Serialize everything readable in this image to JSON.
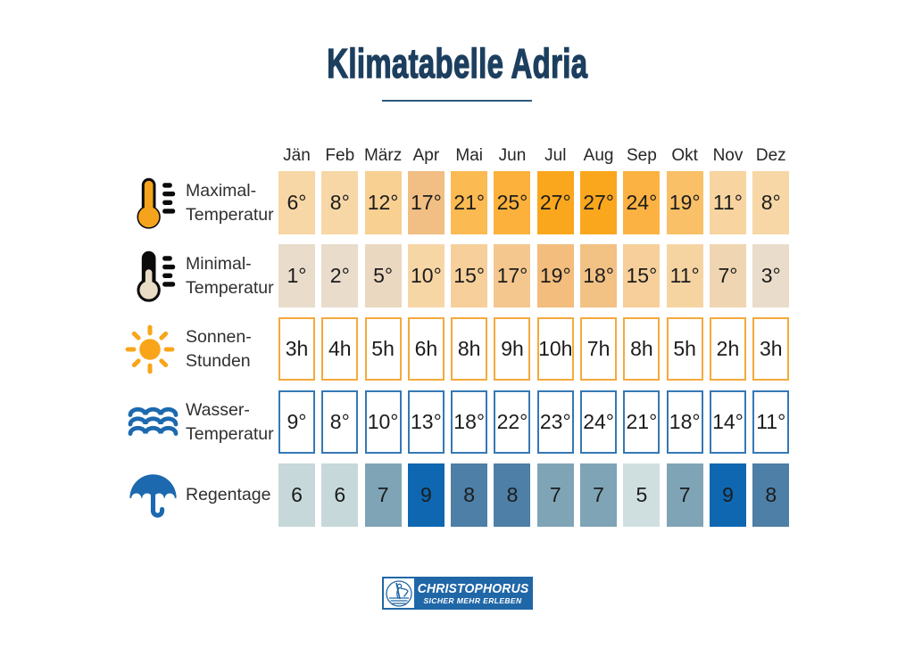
{
  "title": "Klimatabelle Adria",
  "months": [
    "Jän",
    "Feb",
    "März",
    "Apr",
    "Mai",
    "Jun",
    "Jul",
    "Aug",
    "Sep",
    "Okt",
    "Nov",
    "Dez"
  ],
  "rows": [
    {
      "id": "max-temp",
      "icon": "thermometer-warm-icon",
      "label_lines": [
        "Maximal-",
        "Temperatur"
      ],
      "style": "filled",
      "values": [
        "6°",
        "8°",
        "12°",
        "17°",
        "21°",
        "25°",
        "27°",
        "27°",
        "24°",
        "19°",
        "11°",
        "8°"
      ],
      "cell_colors": [
        "#f7d7a6",
        "#f7d7a6",
        "#f8d092",
        "#f1be83",
        "#fbba52",
        "#fbb13c",
        "#faa71e",
        "#faa71e",
        "#fbb242",
        "#f9c067",
        "#f7d4a0",
        "#f7d7a6"
      ]
    },
    {
      "id": "min-temp",
      "icon": "thermometer-cold-icon",
      "label_lines": [
        "Minimal-",
        "Temperatur"
      ],
      "style": "filled",
      "values": [
        "1°",
        "2°",
        "5°",
        "10°",
        "15°",
        "17°",
        "19°",
        "18°",
        "15°",
        "11°",
        "7°",
        "3°"
      ],
      "cell_colors": [
        "#e9dccb",
        "#e9dccb",
        "#ebd8c1",
        "#f7d6a6",
        "#f6cf9a",
        "#f4c78e",
        "#f2bd7d",
        "#f2c184",
        "#f6cf9a",
        "#f6d4a2",
        "#efd5b2",
        "#eadcca"
      ]
    },
    {
      "id": "sun-hours",
      "icon": "sun-icon",
      "label_lines": [
        "Sonnen-",
        "Stunden"
      ],
      "style": "outlined",
      "border_color": "#f5a93c",
      "values": [
        "3h",
        "4h",
        "5h",
        "6h",
        "8h",
        "9h",
        "10h",
        "7h",
        "8h",
        "5h",
        "2h",
        "3h"
      ]
    },
    {
      "id": "water-temp",
      "icon": "waves-icon",
      "label_lines": [
        "Wasser-",
        "Temperatur"
      ],
      "style": "outlined",
      "border_color": "#3578b5",
      "values": [
        "9°",
        "8°",
        "10°",
        "13°",
        "18°",
        "22°",
        "23°",
        "24°",
        "21°",
        "18°",
        "14°",
        "11°"
      ]
    },
    {
      "id": "rain-days",
      "icon": "umbrella-icon",
      "label_lines": [
        "Regentage"
      ],
      "style": "filled",
      "values": [
        "6",
        "6",
        "7",
        "9",
        "8",
        "8",
        "7",
        "7",
        "5",
        "7",
        "9",
        "8"
      ],
      "cell_colors": [
        "#c6d8d9",
        "#c6d8d9",
        "#7ea4b6",
        "#0e67b0",
        "#4d7fa7",
        "#4d7fa7",
        "#7ea4b6",
        "#7ea4b6",
        "#cfdfdf",
        "#7ea4b6",
        "#0e67b0",
        "#4d7fa7"
      ]
    }
  ],
  "logo": {
    "brand": "Christophorus",
    "line1": "CHRISTOPHORUS",
    "line2": "SICHER MEHR ERLEBEN"
  },
  "colors": {
    "title_navy": "#1d3f5f",
    "underline_navy": "#2d5a7d",
    "logo_blue": "#2067a7",
    "icon_blue": "#1c69af",
    "icon_orange": "#f5a31c",
    "sun_border": "#f5a93c",
    "water_border": "#3578b5",
    "background": "#ffffff"
  },
  "chart_data": {
    "type": "table",
    "title": "Klimatabelle Adria",
    "categories": [
      "Jän",
      "Feb",
      "März",
      "Apr",
      "Mai",
      "Jun",
      "Jul",
      "Aug",
      "Sep",
      "Okt",
      "Nov",
      "Dez"
    ],
    "series": [
      {
        "name": "Maximal-Temperatur",
        "unit": "°C",
        "values": [
          6,
          8,
          12,
          17,
          21,
          25,
          27,
          27,
          24,
          19,
          11,
          8
        ]
      },
      {
        "name": "Minimal-Temperatur",
        "unit": "°C",
        "values": [
          1,
          2,
          5,
          10,
          15,
          17,
          19,
          18,
          15,
          11,
          7,
          3
        ]
      },
      {
        "name": "Sonnen-Stunden",
        "unit": "h",
        "values": [
          3,
          4,
          5,
          6,
          8,
          9,
          10,
          7,
          8,
          5,
          2,
          3
        ]
      },
      {
        "name": "Wasser-Temperatur",
        "unit": "°C",
        "values": [
          9,
          8,
          10,
          13,
          18,
          22,
          23,
          24,
          21,
          18,
          14,
          11
        ]
      },
      {
        "name": "Regentage",
        "unit": "Tage",
        "values": [
          6,
          6,
          7,
          9,
          8,
          8,
          7,
          7,
          5,
          7,
          9,
          8
        ]
      }
    ]
  }
}
